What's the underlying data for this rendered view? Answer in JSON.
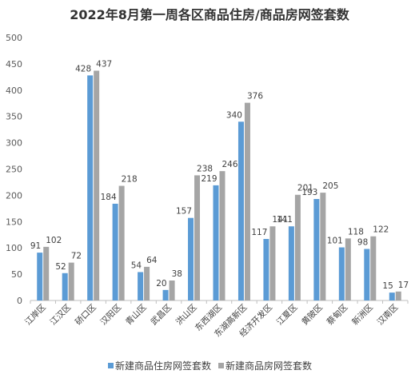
{
  "chart_data": {
    "type": "bar",
    "title": "2022年8月第一周各区商品住房/商品房网签套数",
    "xlabel": "",
    "ylabel": "",
    "ylim": [
      0,
      500
    ],
    "yticks": [
      0,
      50,
      100,
      150,
      200,
      250,
      300,
      350,
      400,
      450,
      500
    ],
    "grid": false,
    "legend_position": "bottom",
    "categories": [
      "江岸区",
      "江汉区",
      "硚口区",
      "汉阳区",
      "青山区",
      "武昌区",
      "洪山区",
      "东西湖区",
      "东湖高新区",
      "经济开发区",
      "江夏区",
      "黄陂区",
      "蔡甸区",
      "新洲区",
      "汉南区"
    ],
    "series": [
      {
        "name": "新建商品住房网签套数",
        "color": "#5b9bd5",
        "values": [
          91,
          52,
          428,
          184,
          54,
          20,
          157,
          219,
          340,
          117,
          141,
          193,
          101,
          98,
          15
        ]
      },
      {
        "name": "新建商品房网签套数",
        "color": "#a5a5a5",
        "values": [
          102,
          72,
          437,
          218,
          64,
          38,
          238,
          246,
          376,
          141,
          201,
          205,
          118,
          122,
          17
        ]
      }
    ]
  }
}
